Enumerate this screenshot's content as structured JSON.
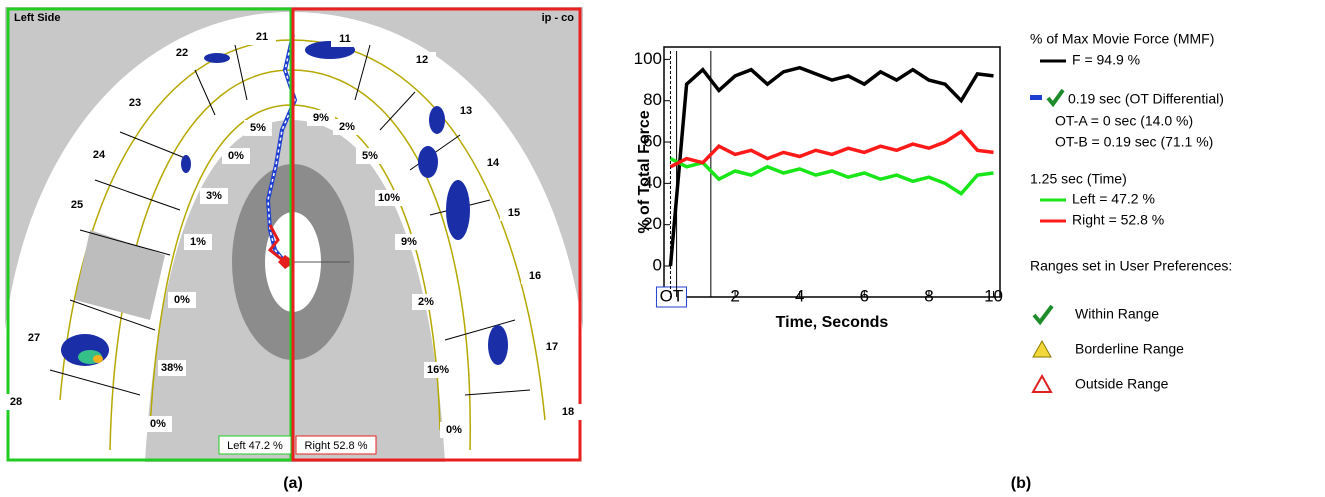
{
  "panel_a": {
    "side_label": "Left Side",
    "mode_label": "ip - co",
    "left_teeth": [
      "21",
      "22",
      "23",
      "24",
      "25",
      "27",
      "28"
    ],
    "right_teeth": [
      "11",
      "12",
      "13",
      "14",
      "15",
      "16",
      "17",
      "18"
    ],
    "left_percents": [
      "5%",
      "0%",
      "3%",
      "1%",
      "0%",
      "38%",
      "0%"
    ],
    "right_percents": [
      "9%",
      "2%",
      "5%",
      "10%",
      "9%",
      "2%",
      "16%",
      "0%"
    ],
    "left_total": "Left 47.2 %",
    "right_total": "Right 52.8 %",
    "caption": "(a)"
  },
  "chart_data": {
    "type": "line",
    "caption": "(b)",
    "x_label": "Time, Seconds",
    "y_label": "% of Total Force",
    "x": [
      0,
      0.5,
      1,
      1.5,
      2,
      2.5,
      3,
      3.5,
      4,
      4.5,
      5,
      5.5,
      6,
      6.5,
      7,
      7.5,
      8,
      8.5,
      9,
      9.5,
      10
    ],
    "series": [
      {
        "name": "F = 94.9 %",
        "color": "#000000",
        "values": [
          0,
          88,
          95,
          85,
          92,
          95,
          88,
          94,
          96,
          93,
          90,
          92,
          88,
          94,
          90,
          95,
          90,
          88,
          80,
          93,
          92
        ]
      },
      {
        "name": "Left = 47.2 %",
        "color": "#19e619",
        "values": [
          52,
          48,
          50,
          42,
          46,
          44,
          48,
          45,
          47,
          44,
          46,
          43,
          45,
          42,
          44,
          41,
          43,
          40,
          35,
          44,
          45
        ]
      },
      {
        "name": "Right = 52.8 %",
        "color": "#ff1a1a",
        "values": [
          48,
          52,
          50,
          58,
          54,
          56,
          52,
          55,
          53,
          56,
          54,
          57,
          55,
          58,
          56,
          59,
          57,
          60,
          65,
          56,
          55
        ]
      }
    ],
    "vlines": [
      0,
      0.19,
      1.25
    ],
    "xlim": [
      -0.2,
      10.2
    ],
    "ylim": [
      -15,
      106
    ],
    "xticks": [
      {
        "value": 0,
        "label": "OT"
      },
      2,
      4,
      6,
      8,
      10
    ],
    "yticks": [
      0,
      20,
      40,
      60,
      80,
      100
    ],
    "legend_title": "% of Max Movie Force (MMF)",
    "ot_differential": "0.19 sec (OT Differential)",
    "ot_a": "OT-A = 0 sec (14.0 %)",
    "ot_b": "OT-B = 0.19 sec (71.1 %)",
    "time_label": "1.25 sec (Time)",
    "ranges_title": "Ranges set in User Preferences:",
    "within": "Within Range",
    "borderline": "Borderline Range",
    "outside": "Outside Range"
  }
}
